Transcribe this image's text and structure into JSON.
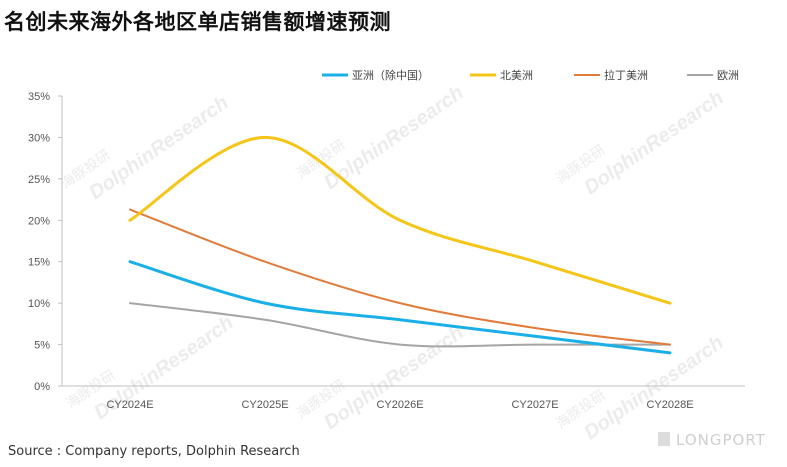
{
  "title": "名创未来海外各地区单店销售额增速预测",
  "source": "Source : Company reports, Dolphin Research",
  "brand": "LONGPORT",
  "watermark": {
    "en": "DolphinResearch",
    "cn": "海豚投研"
  },
  "colors": {
    "亚洲（除中国）": "#1aafe6",
    "北美洲": "#f5c518",
    "拉丁美洲": "#e07b39",
    "欧洲": "#a5a5a5",
    "grid": "#d9d9d9"
  },
  "chart_data": {
    "type": "line",
    "title": "名创未来海外各地区单店销售额增速预测",
    "xlabel": "",
    "ylabel": "",
    "categories": [
      "CY2024E",
      "CY2025E",
      "CY2026E",
      "CY2027E",
      "CY2028E"
    ],
    "ylim": [
      0,
      35
    ],
    "ytick_labels": [
      "0%",
      "5%",
      "10%",
      "15%",
      "20%",
      "25%",
      "30%",
      "35%"
    ],
    "legend_position": "top-right",
    "smooth": true,
    "grid": false,
    "series": [
      {
        "name": "亚洲（除中国）",
        "values": [
          15,
          10,
          8,
          6,
          4
        ],
        "color": "#1aafe6"
      },
      {
        "name": "北美洲",
        "values": [
          20,
          30,
          20,
          15,
          10
        ],
        "color": "#f5c518"
      },
      {
        "name": "拉丁美洲",
        "values": [
          21.3,
          15,
          10,
          7,
          5
        ],
        "color": "#e07b39"
      },
      {
        "name": "欧洲",
        "values": [
          10,
          8,
          5,
          5,
          5
        ],
        "color": "#a5a5a5"
      }
    ]
  }
}
